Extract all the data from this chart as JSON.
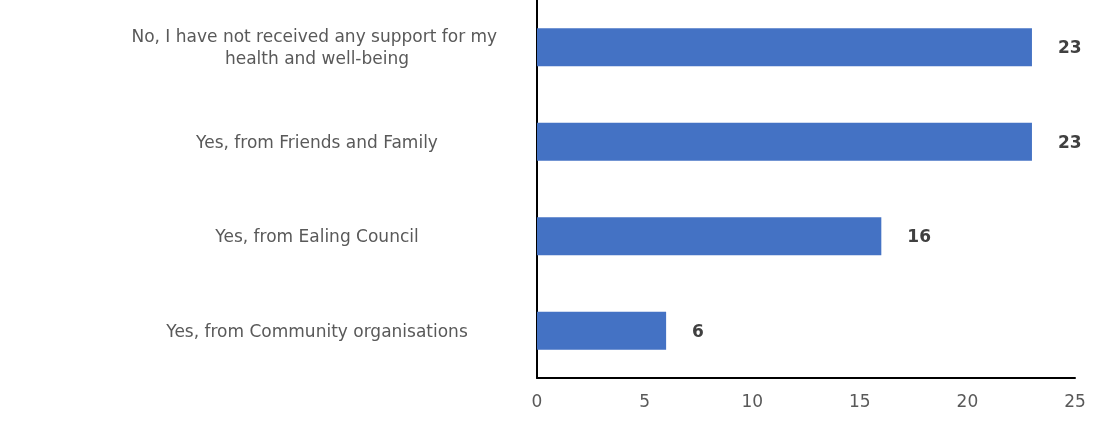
{
  "chart_data": {
    "type": "bar",
    "orientation": "horizontal",
    "categories": [
      "No, I have not received any support for my health and well-being",
      "Yes, from Friends and Family",
      "Yes, from Ealing Council",
      "Yes, from Community organisations"
    ],
    "values": [
      23,
      23,
      16,
      6
    ],
    "color": "#4472c4",
    "xlim": [
      0,
      25
    ],
    "xticks": [
      0,
      5,
      10,
      15,
      20,
      25
    ],
    "grid": false,
    "data_labels": true
  }
}
